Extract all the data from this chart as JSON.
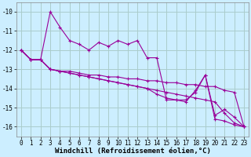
{
  "xlabel": "Windchill (Refroidissement éolien,°C)",
  "ylabel": "",
  "background_color": "#cceeff",
  "grid_color": "#aacccc",
  "line_color": "#990099",
  "xlim": [
    -0.5,
    23.5
  ],
  "ylim": [
    -16.5,
    -9.5
  ],
  "yticks": [
    -16,
    -15,
    -14,
    -13,
    -12,
    -11,
    -10
  ],
  "xticks": [
    0,
    1,
    2,
    3,
    4,
    5,
    6,
    7,
    8,
    9,
    10,
    11,
    12,
    13,
    14,
    15,
    16,
    17,
    18,
    19,
    20,
    21,
    22,
    23
  ],
  "series": [
    {
      "x": [
        0,
        1,
        2,
        3,
        4,
        5,
        6,
        7,
        8,
        9,
        10,
        11,
        12,
        13,
        14,
        15,
        16,
        17,
        18,
        19,
        20,
        21,
        22,
        23
      ],
      "y": [
        -12.0,
        -12.5,
        -12.5,
        -10.0,
        -10.8,
        -11.5,
        -11.7,
        -12.0,
        -11.6,
        -11.8,
        -11.5,
        -11.7,
        -11.5,
        -12.4,
        -12.4,
        -14.6,
        -14.6,
        -14.7,
        -14.1,
        -13.3,
        -15.4,
        -15.1,
        -15.5,
        -16.0
      ]
    },
    {
      "x": [
        0,
        1,
        2,
        3,
        4,
        5,
        6,
        7,
        8,
        9,
        10,
        11,
        12,
        13,
        14,
        15,
        16,
        17,
        18,
        19,
        20,
        21,
        22,
        23
      ],
      "y": [
        -12.0,
        -12.5,
        -12.5,
        -13.0,
        -13.1,
        -13.1,
        -13.2,
        -13.3,
        -13.3,
        -13.4,
        -13.4,
        -13.5,
        -13.5,
        -13.6,
        -13.6,
        -13.7,
        -13.7,
        -13.8,
        -13.8,
        -13.9,
        -13.9,
        -14.1,
        -14.2,
        -16.0
      ]
    },
    {
      "x": [
        0,
        1,
        2,
        3,
        4,
        5,
        6,
        7,
        8,
        9,
        10,
        11,
        12,
        13,
        14,
        15,
        16,
        17,
        18,
        19,
        20,
        21,
        22,
        23
      ],
      "y": [
        -12.0,
        -12.5,
        -12.5,
        -13.0,
        -13.1,
        -13.2,
        -13.3,
        -13.4,
        -13.5,
        -13.6,
        -13.7,
        -13.8,
        -13.9,
        -14.0,
        -14.1,
        -14.2,
        -14.3,
        -14.4,
        -14.5,
        -14.6,
        -14.7,
        -15.3,
        -15.8,
        -16.0
      ]
    },
    {
      "x": [
        0,
        1,
        2,
        3,
        4,
        5,
        6,
        7,
        8,
        9,
        10,
        11,
        12,
        13,
        14,
        15,
        16,
        17,
        18,
        19,
        20,
        21,
        22,
        23
      ],
      "y": [
        -12.0,
        -12.5,
        -12.5,
        -13.0,
        -13.1,
        -13.2,
        -13.3,
        -13.4,
        -13.5,
        -13.6,
        -13.7,
        -13.8,
        -13.9,
        -14.0,
        -14.3,
        -14.5,
        -14.6,
        -14.6,
        -14.2,
        -13.3,
        -15.6,
        -15.7,
        -15.9,
        -16.0
      ]
    }
  ],
  "marker": "+",
  "markersize": 3,
  "linewidth": 0.8,
  "xlabel_fontsize": 6.5,
  "tick_fontsize": 5.5
}
